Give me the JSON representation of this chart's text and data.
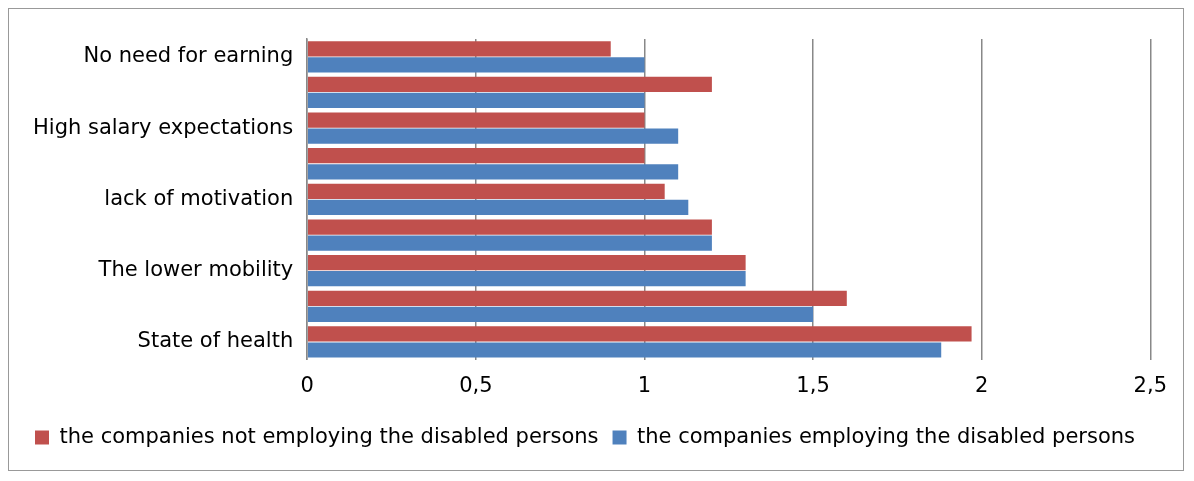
{
  "chart_data": {
    "type": "bar",
    "orientation": "horizontal",
    "categories": [
      "No need for earning",
      null,
      "High salary expectations",
      null,
      "lack of motivation",
      null,
      "The lower mobility",
      null,
      "State of health"
    ],
    "series": [
      {
        "name": "the companies not employing the disabled persons",
        "color": "#c0504d",
        "values": [
          0.9,
          1.2,
          1.0,
          1.0,
          1.06,
          1.2,
          1.3,
          1.6,
          1.97
        ]
      },
      {
        "name": "the companies employing the disabled persons",
        "color": "#4f81bd",
        "values": [
          1.0,
          1.0,
          1.1,
          1.1,
          1.13,
          1.2,
          1.3,
          1.5,
          1.88
        ]
      }
    ],
    "xlim": [
      0,
      2.5
    ],
    "xticks": [
      0,
      {
        "value": 0.5,
        "label": "0,5"
      },
      1,
      {
        "value": 1.5,
        "label": "1,5"
      },
      2,
      {
        "value": 2.5,
        "label": "2,5"
      }
    ],
    "grid": "x",
    "legend": "bottom"
  }
}
